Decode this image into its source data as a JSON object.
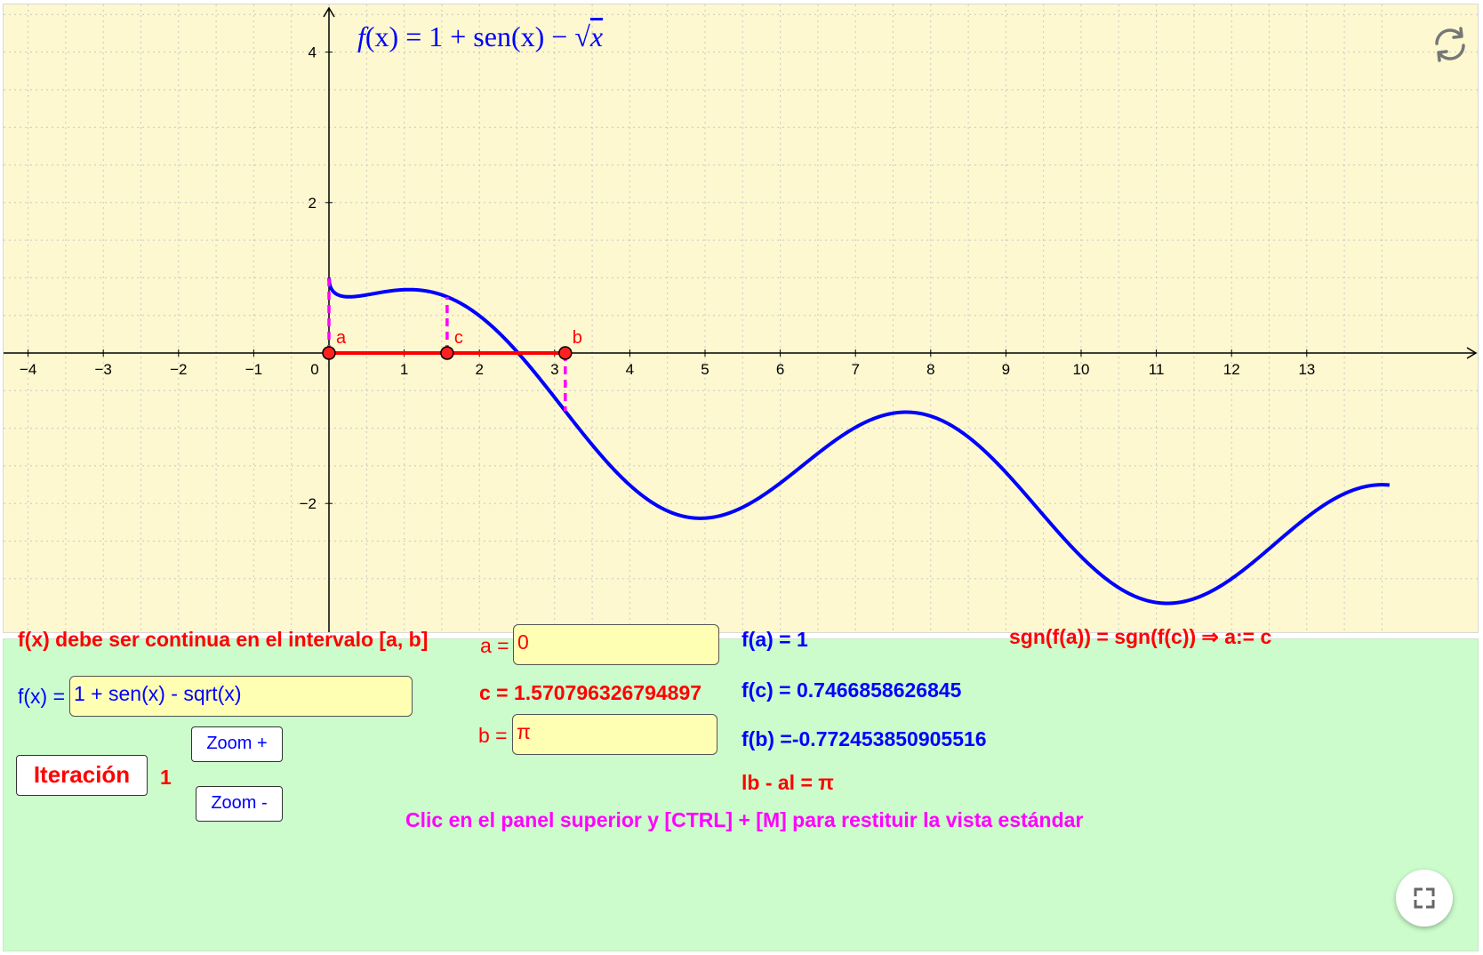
{
  "graph": {
    "title_f": "f",
    "title_mid": "(x) = 1 + sen(x) − ",
    "title_sqrt_arg": "x",
    "x_ticks": [
      "−4",
      "−3",
      "−2",
      "−1",
      "0",
      "1",
      "2",
      "3",
      "4",
      "5",
      "6",
      "7",
      "8",
      "9",
      "10",
      "11",
      "12",
      "13"
    ],
    "y_ticks": [
      "4",
      "2",
      "−2"
    ],
    "point_labels": {
      "a": "a",
      "b": "b",
      "c": "c"
    },
    "points": {
      "a": 0,
      "c": 1.570796326794897,
      "b": 3.141592653589793
    },
    "x_range": [
      -4.3,
      14.1
    ],
    "y_range": [
      -3.2,
      4.5
    ],
    "curve_color": "#0000ff",
    "interval_color": "#ff0000",
    "dash_color": "#ff00ff",
    "refresh_icon": "refresh-icon"
  },
  "panel": {
    "continuity_note": "f(x) debe ser continua en el intervalo [a, b]",
    "fx_label": "f(x) =",
    "fx_value": "1 + sen(x) - sqrt(x)",
    "zoom_in_label": "Zoom +",
    "zoom_out_label": "Zoom -",
    "iter_label": "Iteración",
    "iter_value": "1",
    "a_label": "a =",
    "a_value": "0",
    "c_text": "c = 1.570796326794897",
    "b_label": "b =",
    "b_value": "π",
    "fa_text": "f(a) = 1",
    "fc_text": "f(c) = 0.7466858626845",
    "fb_text": "f(b) =-0.772453850905516",
    "interval_len": "lb - al = π",
    "rule_text": "sgn(f(a)) = sgn(f(c))  ⇒  a:= c",
    "hint": "Clic en el panel superior y [CTRL] + [M] para restituir la vista estándar",
    "fullscreen_icon": "fullscreen-icon"
  }
}
